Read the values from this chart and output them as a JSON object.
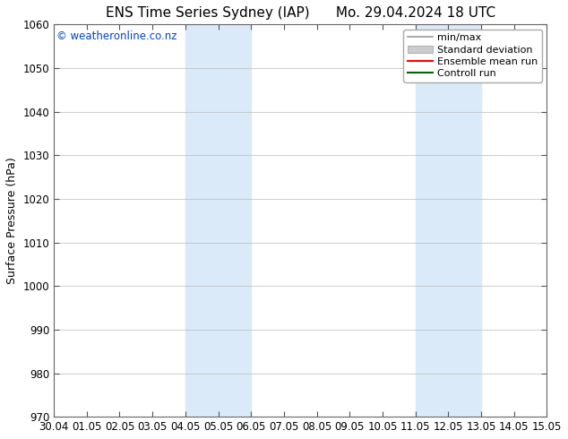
{
  "title_left": "ENS Time Series Sydney (IAP)",
  "title_right": "Mo. 29.04.2024 18 UTC",
  "ylabel": "Surface Pressure (hPa)",
  "ylim": [
    970,
    1060
  ],
  "yticks": [
    970,
    980,
    990,
    1000,
    1010,
    1020,
    1030,
    1040,
    1050,
    1060
  ],
  "xtick_labels": [
    "30.04",
    "01.05",
    "02.05",
    "03.05",
    "04.05",
    "05.05",
    "06.05",
    "07.05",
    "08.05",
    "09.05",
    "10.05",
    "11.05",
    "12.05",
    "13.05",
    "14.05",
    "15.05"
  ],
  "watermark": "© weatheronline.co.nz",
  "watermark_color": "#0044cc",
  "background_color": "#ffffff",
  "plot_bg_color": "#ffffff",
  "shaded_regions": [
    {
      "xstart": 4,
      "xend": 6,
      "color": "#daeaf8"
    },
    {
      "xstart": 11,
      "xend": 13,
      "color": "#daeaf8"
    }
  ],
  "legend_entries": [
    {
      "label": "min/max",
      "color": "#999999",
      "style": "line",
      "lw": 1.2
    },
    {
      "label": "Standard deviation",
      "color": "#cccccc",
      "style": "fill"
    },
    {
      "label": "Ensemble mean run",
      "color": "#ff0000",
      "style": "line",
      "lw": 1.5
    },
    {
      "label": "Controll run",
      "color": "#006600",
      "style": "line",
      "lw": 1.5
    }
  ],
  "title_fontsize": 11,
  "axis_label_fontsize": 9,
  "tick_fontsize": 8.5,
  "watermark_fontsize": 8.5,
  "legend_fontsize": 8
}
